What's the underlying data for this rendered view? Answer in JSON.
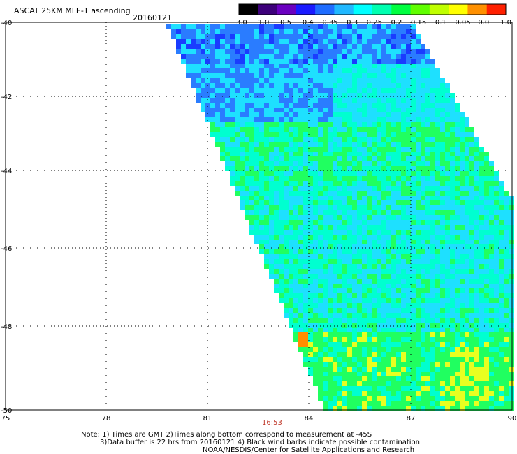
{
  "header": {
    "title": "ASCAT 25KM MLE-1 ascending",
    "date": "20160121"
  },
  "colorbar": {
    "labels": [
      "-3.0",
      "-1.0",
      "-0.5",
      "-0.4",
      "-0.35",
      "-0.3",
      "-0.25",
      "-0.2",
      "-0.15",
      "-0.1",
      "-0.05",
      "0.0",
      "1.0"
    ],
    "colors": [
      "#000000",
      "#3d007a",
      "#6a00c0",
      "#1a1aff",
      "#1e6cff",
      "#20b8ff",
      "#00ffff",
      "#00ffb0",
      "#00ff40",
      "#60ff00",
      "#c0ff00",
      "#ffff00",
      "#ff9000",
      "#ff2000"
    ]
  },
  "map": {
    "lat_labels": [
      "-40",
      "-42",
      "-44",
      "-46",
      "-48",
      "-50"
    ],
    "lon_labels": [
      "75",
      "78",
      "81",
      "84",
      "87",
      "90"
    ],
    "time_label": "16:53",
    "swath_colors": {
      "deep_blue": "#1a3cff",
      "blue": "#2a7cff",
      "cyan": "#1ee0ff",
      "aqua": "#00ffd0",
      "green": "#20ff60",
      "yellow": "#e8ff20",
      "orange": "#ff8c00"
    }
  },
  "notes": {
    "line1": "Note: 1) Times are GMT 2)Times along bottom correspond to measurement at -45S",
    "line2": "3)Data buffer is 22 hrs from 20160121 4) Black wind barbs indicate possible contamination",
    "line3": "NOAA/NESDIS/Center for Satellite Applications and Research"
  }
}
